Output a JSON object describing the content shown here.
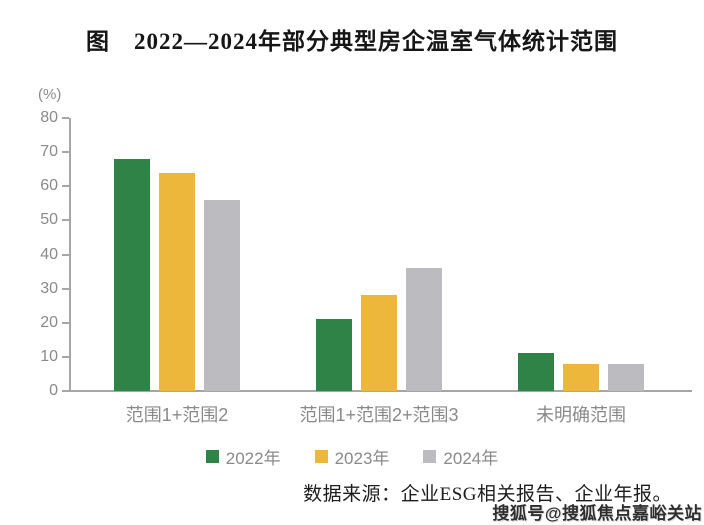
{
  "title": "图　2022—2024年部分典型房企温室气体统计范围",
  "chart_data": {
    "type": "bar",
    "title": "图　2022—2024年部分典型房企温室气体统计范围",
    "unit_label": "(%)",
    "categories": [
      "范围1+范围2",
      "范围1+范围2+范围3",
      "未明确范围"
    ],
    "series": [
      {
        "name": "2022年",
        "color": "#2f8347",
        "values": [
          68,
          21,
          11
        ]
      },
      {
        "name": "2023年",
        "color": "#ecb73b",
        "values": [
          64,
          28,
          8
        ]
      },
      {
        "name": "2024年",
        "color": "#bcbcc0",
        "values": [
          56,
          36,
          8
        ]
      }
    ],
    "xlabel": "",
    "ylabel": "(%)",
    "ylim": [
      0,
      80
    ],
    "yticks": [
      0,
      10,
      20,
      30,
      40,
      50,
      60,
      70,
      80
    ],
    "grid": false,
    "legend_position": "bottom"
  },
  "source_note": "数据来源：企业ESG相关报告、企业年报。",
  "watermark": "搜狐号@搜狐焦点嘉峪关站",
  "colors": {
    "axis": "#a6a6a6",
    "tick_label": "#8a8a8a",
    "series_green": "#2f8347",
    "series_yellow": "#ecb73b",
    "series_gray": "#bcbcc0"
  }
}
